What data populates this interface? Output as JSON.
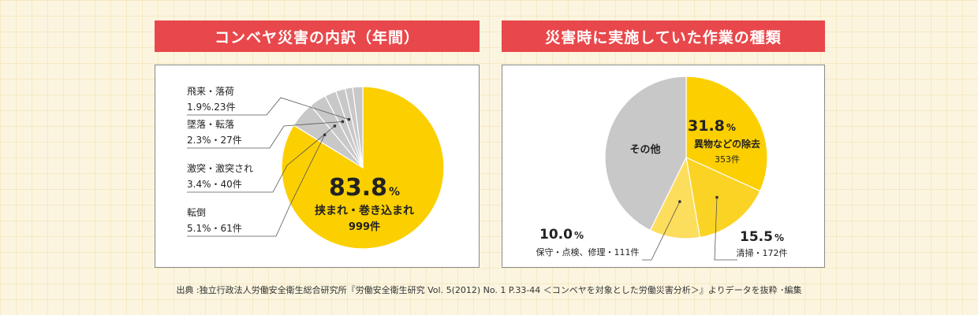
{
  "colors": {
    "banner": "#e8484b",
    "accent_yellow": "#fccf00",
    "yellow_2": "#fbd324",
    "yellow_3": "#fddd5c",
    "gray": "#c8c8c8",
    "text": "#222222"
  },
  "chart_data": [
    {
      "type": "pie",
      "title": "コンベヤ災害の内訳（年間）",
      "slices": [
        {
          "label": "挟まれ・巻き込まれ",
          "percent_text": "83.8",
          "unit": "%",
          "count_text": "999件",
          "value": 83.8,
          "color": "#fccf00"
        },
        {
          "label": "転倒",
          "percent_text": "5.1%・61件",
          "value": 5.1,
          "color": "#c8c8c8"
        },
        {
          "label": "激突・激突され",
          "percent_text": "3.4%・40件",
          "value": 3.4,
          "color": "#c8c8c8"
        },
        {
          "label": "墜落・転落",
          "percent_text": "2.3%・27件",
          "value": 2.3,
          "color": "#c8c8c8"
        },
        {
          "label": "飛来・落荷",
          "percent_text": "1.9%.23件",
          "value": 1.9,
          "color": "#c8c8c8"
        },
        {
          "label": "",
          "percent_text": "",
          "value": 1.5,
          "color": "#c8c8c8"
        },
        {
          "label": "",
          "percent_text": "",
          "value": 2.0,
          "color": "#c8c8c8"
        }
      ]
    },
    {
      "type": "pie",
      "title": "災害時に実施していた作業の種類",
      "slices": [
        {
          "label": "異物などの除去",
          "percent_text": "31.8",
          "unit": "%",
          "count_text": "353件",
          "value": 31.8,
          "color": "#fccf00"
        },
        {
          "label": "清掃・172件",
          "percent_text": "15.5",
          "unit": "%",
          "value": 15.5,
          "color": "#fbd324"
        },
        {
          "label": "保守・点検、修理・111件",
          "percent_text": "10.0",
          "unit": "%",
          "value": 10.0,
          "color": "#fddd5c"
        },
        {
          "label": "その他",
          "percent_text": "",
          "value": 42.7,
          "color": "#c8c8c8"
        }
      ]
    }
  ],
  "source": "出典 :独立行政法人労働安全衛生総合研究所『労働安全衛生研究 Vol. 5(2012) No. 1 P.33-44 ＜コンベヤを対象とした労働災害分析＞』よりデータを抜粋 ･編集"
}
